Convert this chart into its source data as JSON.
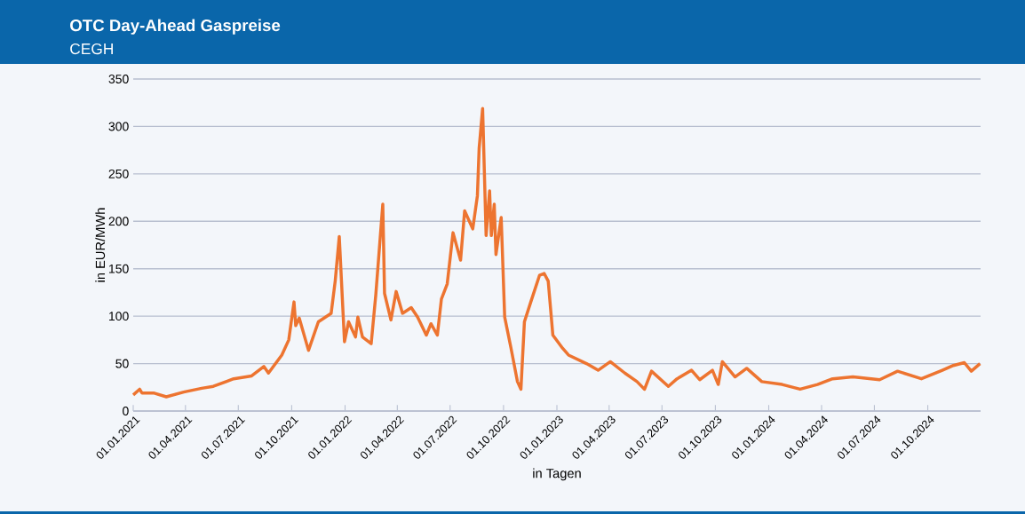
{
  "chart_data": {
    "type": "line",
    "title": "OTC Day-Ahead Gaspreise",
    "subtitle": "CEGH",
    "xlabel": "in Tagen",
    "ylabel": "in EUR/MWh",
    "x": [
      "2021-01-01",
      "2021-01-12",
      "2021-01-16",
      "2021-02-05",
      "2021-02-27",
      "2021-03-29",
      "2021-04-29",
      "2021-05-19",
      "2021-06-23",
      "2021-07-24",
      "2021-08-14",
      "2021-08-22",
      "2021-09-14",
      "2021-09-26",
      "2021-10-05",
      "2021-10-08",
      "2021-10-14",
      "2021-10-30",
      "2021-11-16",
      "2021-12-08",
      "2021-12-15",
      "2021-12-22",
      "2021-12-31",
      "2022-01-07",
      "2022-01-19",
      "2022-01-23",
      "2022-01-31",
      "2022-02-15",
      "2022-02-23",
      "2022-03-07",
      "2022-03-10",
      "2022-03-21",
      "2022-03-30",
      "2022-04-10",
      "2022-04-25",
      "2022-05-06",
      "2022-05-21",
      "2022-05-29",
      "2022-06-09",
      "2022-06-16",
      "2022-06-26",
      "2022-07-06",
      "2022-07-19",
      "2022-07-26",
      "2022-08-09",
      "2022-08-17",
      "2022-08-20",
      "2022-08-26",
      "2022-09-01",
      "2022-09-07",
      "2022-09-10",
      "2022-09-15",
      "2022-09-18",
      "2022-09-27",
      "2022-10-03",
      "2022-10-14",
      "2022-10-25",
      "2022-10-31",
      "2022-11-06",
      "2022-11-17",
      "2022-12-02",
      "2022-12-10",
      "2022-12-17",
      "2022-12-25",
      "2023-01-11",
      "2023-01-21",
      "2023-02-21",
      "2023-03-13",
      "2023-04-03",
      "2023-04-28",
      "2023-05-19",
      "2023-06-01",
      "2023-06-13",
      "2023-07-12",
      "2023-07-27",
      "2023-08-21",
      "2023-09-04",
      "2023-09-26",
      "2023-10-06",
      "2023-10-13",
      "2023-11-04",
      "2023-11-24",
      "2023-12-20",
      "2024-01-24",
      "2024-02-24",
      "2024-03-25",
      "2024-04-20",
      "2024-05-25",
      "2024-07-10",
      "2024-08-10",
      "2024-09-20",
      "2024-10-26",
      "2024-11-14",
      "2024-12-03",
      "2024-12-15",
      "2024-12-30"
    ],
    "series": [
      {
        "color": "#ed7430",
        "values": [
          17,
          23,
          19,
          19,
          15,
          20,
          24,
          26,
          34,
          37,
          47,
          40,
          59,
          75,
          115,
          90,
          98,
          64,
          94,
          103,
          137,
          184,
          73,
          94,
          78,
          99,
          78,
          71,
          123,
          218,
          124,
          96,
          126,
          103,
          109,
          99,
          80,
          92,
          80,
          118,
          134,
          188,
          159,
          211,
          192,
          227,
          277,
          319,
          185,
          232,
          185,
          218,
          165,
          204,
          99,
          66,
          31,
          23,
          94,
          115,
          143,
          145,
          137,
          80,
          66,
          59,
          50,
          43,
          52,
          40,
          31,
          23,
          42,
          26,
          34,
          43,
          33,
          43,
          28,
          52,
          36,
          45,
          31,
          28,
          23,
          28,
          34,
          36,
          33,
          42,
          34,
          43,
          48,
          51,
          42,
          50
        ]
      }
    ],
    "xlim": [
      "2021-01-01",
      "2024-12-31"
    ],
    "xticks": [
      {
        "value": "2021-01-01",
        "label": "01.01.2021"
      },
      {
        "value": "2021-04-01",
        "label": "01.04.2021"
      },
      {
        "value": "2021-07-01",
        "label": "01.07.2021"
      },
      {
        "value": "2021-10-01",
        "label": "01.10.2021"
      },
      {
        "value": "2022-01-01",
        "label": "01.01.2022"
      },
      {
        "value": "2022-04-01",
        "label": "01.04.2022"
      },
      {
        "value": "2022-07-01",
        "label": "01.07.2022"
      },
      {
        "value": "2022-10-01",
        "label": "01.10.2022"
      },
      {
        "value": "2023-01-01",
        "label": "01.01.2023"
      },
      {
        "value": "2023-04-01",
        "label": "01.04.2023"
      },
      {
        "value": "2023-07-01",
        "label": "01.07.2023"
      },
      {
        "value": "2023-10-01",
        "label": "01.10.2023"
      },
      {
        "value": "2024-01-01",
        "label": "01.01.2024"
      },
      {
        "value": "2024-04-01",
        "label": "01.04.2024"
      },
      {
        "value": "2024-07-01",
        "label": "01.07.2024"
      },
      {
        "value": "2024-10-01",
        "label": "01.10.2024"
      }
    ],
    "ylim": [
      0,
      350
    ],
    "yticks": [
      0,
      50,
      100,
      150,
      200,
      250,
      300,
      350
    ],
    "grid": "y"
  }
}
